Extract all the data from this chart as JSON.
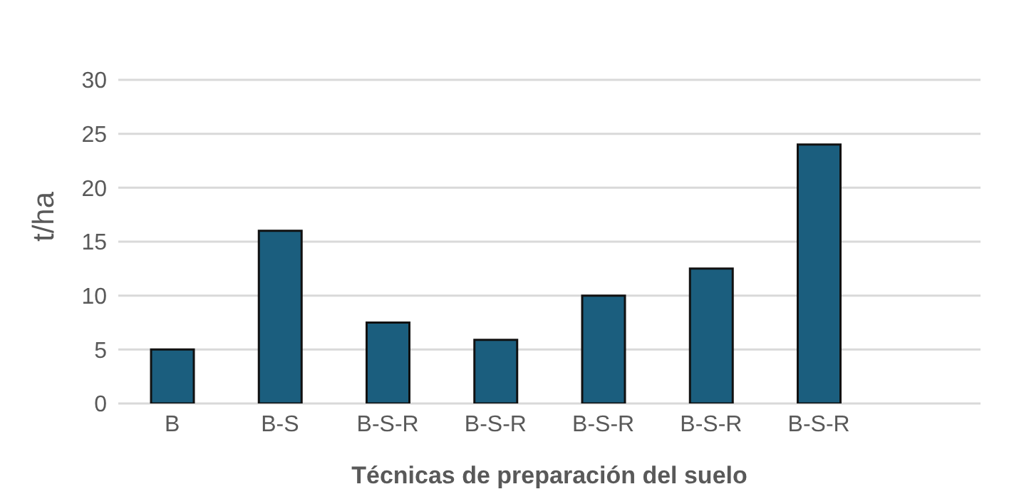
{
  "chart_data": {
    "type": "bar",
    "xlabel": "Técnicas de preparación del suelo",
    "ylabel": "t/ha",
    "categories": [
      "B",
      "B-S",
      "B-S-R",
      "B-S-R",
      "B-S-R",
      "B-S-R",
      "B-S-R",
      null
    ],
    "values": [
      5,
      16,
      7.5,
      5.9,
      10,
      12.5,
      24,
      null
    ],
    "color": "#1b5e7e",
    "ylim": [
      0,
      30
    ],
    "yticks": [
      0,
      5,
      10,
      15,
      20,
      25,
      30
    ],
    "grid": "y",
    "legend": false
  }
}
